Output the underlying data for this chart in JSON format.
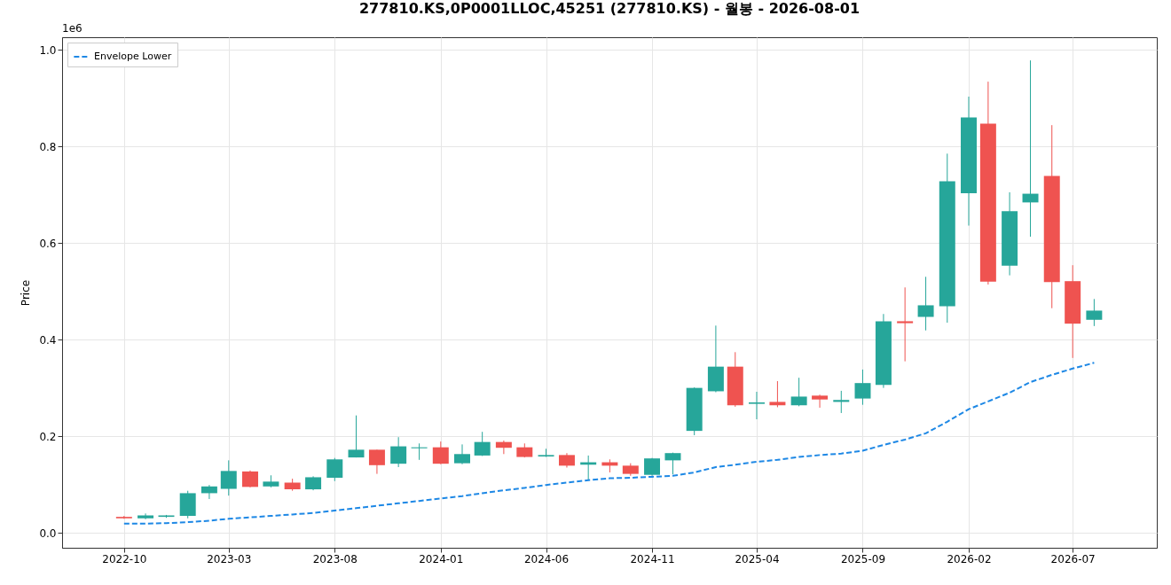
{
  "chart_data": {
    "type": "candlestick",
    "title": "277810.KS,0P0001LLOC,45251 (277810.KS) - 월봉 - 2026-08-01",
    "ylabel": "Price",
    "annotations": [
      "1e6"
    ],
    "x": [
      "2022-10",
      "2022-11",
      "2022-12",
      "2023-01",
      "2023-02",
      "2023-03",
      "2023-04",
      "2023-05",
      "2023-06",
      "2023-07",
      "2023-08",
      "2023-09",
      "2023-10",
      "2023-11",
      "2023-12",
      "2024-01",
      "2024-02",
      "2024-03",
      "2024-04",
      "2024-05",
      "2024-06",
      "2024-07",
      "2024-08",
      "2024-09",
      "2024-10",
      "2024-11",
      "2024-12",
      "2025-01",
      "2025-02",
      "2025-03",
      "2025-04",
      "2025-05",
      "2025-06",
      "2025-07",
      "2025-08",
      "2025-09",
      "2025-10",
      "2025-11",
      "2025-12",
      "2026-01",
      "2026-02",
      "2026-03",
      "2026-04",
      "2026-05",
      "2026-06",
      "2026-07",
      "2026-08"
    ],
    "ohlc": [
      [
        0.033,
        0.035,
        0.029,
        0.03
      ],
      [
        0.03,
        0.04,
        0.028,
        0.036
      ],
      [
        0.033,
        0.037,
        0.031,
        0.036
      ],
      [
        0.035,
        0.087,
        0.03,
        0.082
      ],
      [
        0.082,
        0.099,
        0.07,
        0.096
      ],
      [
        0.091,
        0.15,
        0.077,
        0.128
      ],
      [
        0.127,
        0.129,
        0.094,
        0.095
      ],
      [
        0.096,
        0.119,
        0.094,
        0.106
      ],
      [
        0.104,
        0.112,
        0.087,
        0.09
      ],
      [
        0.09,
        0.117,
        0.088,
        0.115
      ],
      [
        0.114,
        0.155,
        0.107,
        0.152
      ],
      [
        0.156,
        0.243,
        0.156,
        0.172
      ],
      [
        0.172,
        0.172,
        0.122,
        0.14
      ],
      [
        0.143,
        0.198,
        0.136,
        0.179
      ],
      [
        0.175,
        0.185,
        0.151,
        0.177
      ],
      [
        0.177,
        0.189,
        0.142,
        0.143
      ],
      [
        0.144,
        0.183,
        0.142,
        0.163
      ],
      [
        0.16,
        0.209,
        0.159,
        0.188
      ],
      [
        0.188,
        0.191,
        0.163,
        0.176
      ],
      [
        0.177,
        0.185,
        0.156,
        0.157
      ],
      [
        0.158,
        0.174,
        0.157,
        0.161
      ],
      [
        0.161,
        0.165,
        0.135,
        0.139
      ],
      [
        0.141,
        0.16,
        0.108,
        0.146
      ],
      [
        0.146,
        0.152,
        0.125,
        0.139
      ],
      [
        0.139,
        0.144,
        0.118,
        0.122
      ],
      [
        0.12,
        0.155,
        0.118,
        0.154
      ],
      [
        0.15,
        0.166,
        0.121,
        0.165
      ],
      [
        0.211,
        0.301,
        0.202,
        0.3
      ],
      [
        0.293,
        0.429,
        0.291,
        0.344
      ],
      [
        0.344,
        0.374,
        0.261,
        0.264
      ],
      [
        0.267,
        0.292,
        0.235,
        0.27
      ],
      [
        0.271,
        0.314,
        0.26,
        0.264
      ],
      [
        0.264,
        0.321,
        0.262,
        0.282
      ],
      [
        0.284,
        0.286,
        0.259,
        0.276
      ],
      [
        0.271,
        0.294,
        0.248,
        0.275
      ],
      [
        0.278,
        0.338,
        0.265,
        0.31
      ],
      [
        0.306,
        0.453,
        0.3,
        0.438
      ],
      [
        0.438,
        0.508,
        0.355,
        0.434
      ],
      [
        0.447,
        0.53,
        0.419,
        0.471
      ],
      [
        0.469,
        0.785,
        0.435,
        0.728
      ],
      [
        0.703,
        0.903,
        0.636,
        0.86
      ],
      [
        0.847,
        0.934,
        0.514,
        0.52
      ],
      [
        0.553,
        0.705,
        0.533,
        0.666
      ],
      [
        0.684,
        0.978,
        0.613,
        0.702
      ],
      [
        0.739,
        0.844,
        0.465,
        0.519
      ],
      [
        0.521,
        0.554,
        0.362,
        0.433
      ],
      [
        0.441,
        0.484,
        0.428,
        0.46
      ]
    ],
    "colors": [
      "#ef5350",
      "#26a69a",
      "#26a69a",
      "#26a69a",
      "#26a69a",
      "#26a69a",
      "#ef5350",
      "#26a69a",
      "#ef5350",
      "#26a69a",
      "#26a69a",
      "#26a69a",
      "#ef5350",
      "#26a69a",
      "#26a69a",
      "#ef5350",
      "#26a69a",
      "#26a69a",
      "#ef5350",
      "#ef5350",
      "#26a69a",
      "#ef5350",
      "#26a69a",
      "#ef5350",
      "#ef5350",
      "#26a69a",
      "#26a69a",
      "#26a69a",
      "#26a69a",
      "#ef5350",
      "#26a69a",
      "#ef5350",
      "#26a69a",
      "#ef5350",
      "#26a69a",
      "#26a69a",
      "#26a69a",
      "#ef5350",
      "#26a69a",
      "#26a69a",
      "#26a69a",
      "#ef5350",
      "#26a69a",
      "#26a69a",
      "#ef5350",
      "#ef5350",
      "#26a69a"
    ],
    "series": [
      {
        "name": "Envelope Lower",
        "type": "line",
        "color": "#1e88e5",
        "line_style": "dashed",
        "values": [
          0.019,
          0.019,
          0.02,
          0.022,
          0.025,
          0.029,
          0.032,
          0.035,
          0.038,
          0.041,
          0.046,
          0.051,
          0.056,
          0.061,
          0.066,
          0.071,
          0.076,
          0.082,
          0.088,
          0.093,
          0.099,
          0.104,
          0.109,
          0.113,
          0.114,
          0.116,
          0.118,
          0.125,
          0.136,
          0.141,
          0.147,
          0.151,
          0.157,
          0.161,
          0.164,
          0.17,
          0.182,
          0.193,
          0.206,
          0.23,
          0.256,
          0.272,
          0.29,
          0.312,
          0.327,
          0.34,
          0.352
        ]
      }
    ],
    "xlim": [
      "2022-07-10",
      "2026-10-24"
    ],
    "xticks": [
      "2022-10",
      "2023-03",
      "2023-08",
      "2024-01",
      "2024-06",
      "2024-11",
      "2025-04",
      "2025-09",
      "2026-02",
      "2026-07"
    ],
    "ylim": [
      -0.031,
      1.026
    ],
    "yticks": [
      {
        "value": 0,
        "label": "0.0"
      },
      0.2,
      0.4,
      0.6,
      0.8,
      {
        "value": 1,
        "label": "1.0"
      }
    ],
    "grid": true,
    "legend": "top left"
  }
}
